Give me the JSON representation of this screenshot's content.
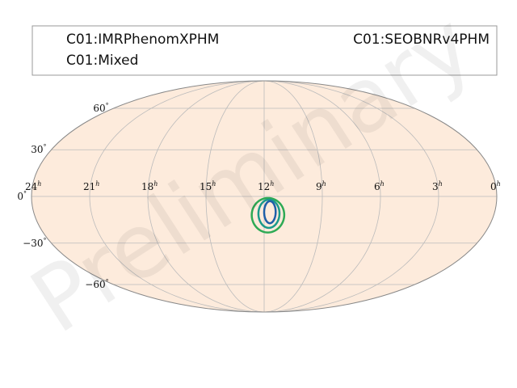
{
  "chart_data": {
    "type": "skymap",
    "projection": "mollweide",
    "legend": {
      "entries": [
        {
          "label": "C01:IMRPhenomXPHM",
          "color": "#1f5fa8"
        },
        {
          "label": "C01:SEOBNRv4PHM",
          "color": "#1a9a8a"
        },
        {
          "label": "C01:Mixed",
          "color": "#2eaa55"
        }
      ]
    },
    "ra_ticks": [
      {
        "hours": 24,
        "label": "24",
        "unit": "h"
      },
      {
        "hours": 21,
        "label": "21",
        "unit": "h"
      },
      {
        "hours": 18,
        "label": "18",
        "unit": "h"
      },
      {
        "hours": 15,
        "label": "15",
        "unit": "h"
      },
      {
        "hours": 12,
        "label": "12",
        "unit": "h"
      },
      {
        "hours": 9,
        "label": "9",
        "unit": "h"
      },
      {
        "hours": 6,
        "label": "6",
        "unit": "h"
      },
      {
        "hours": 3,
        "label": "3",
        "unit": "h"
      },
      {
        "hours": 0,
        "label": "0",
        "unit": "h"
      }
    ],
    "dec_ticks": [
      {
        "deg": 60,
        "label": "60",
        "unit": "°"
      },
      {
        "deg": 30,
        "label": "30",
        "unit": "°"
      },
      {
        "deg": 0,
        "label": "0",
        "unit": "°"
      },
      {
        "deg": -30,
        "label": "−30",
        "unit": "°"
      },
      {
        "deg": -60,
        "label": "−60",
        "unit": "°"
      }
    ],
    "grid": true,
    "credible_regions": [
      {
        "series": "C01:Mixed",
        "color": "#2eaa55",
        "ra_center_h": 11.8,
        "dec_center_deg": -12,
        "ra_halfwidth_h": 0.85,
        "dec_halfwidth_deg": 11
      },
      {
        "series": "C01:SEOBNRv4PHM",
        "color": "#1a9a8a",
        "ra_center_h": 11.75,
        "dec_center_deg": -11,
        "ra_halfwidth_h": 0.55,
        "dec_halfwidth_deg": 9
      },
      {
        "series": "C01:IMRPhenomXPHM",
        "color": "#1f5fa8",
        "ra_center_h": 11.7,
        "dec_center_deg": -10,
        "ra_halfwidth_h": 0.3,
        "dec_halfwidth_deg": 7
      }
    ],
    "colors": {
      "sky_fill": "#fdebdc",
      "grid": "#bbbbbb",
      "outline": "#888888"
    }
  },
  "watermark": "Preliminary"
}
